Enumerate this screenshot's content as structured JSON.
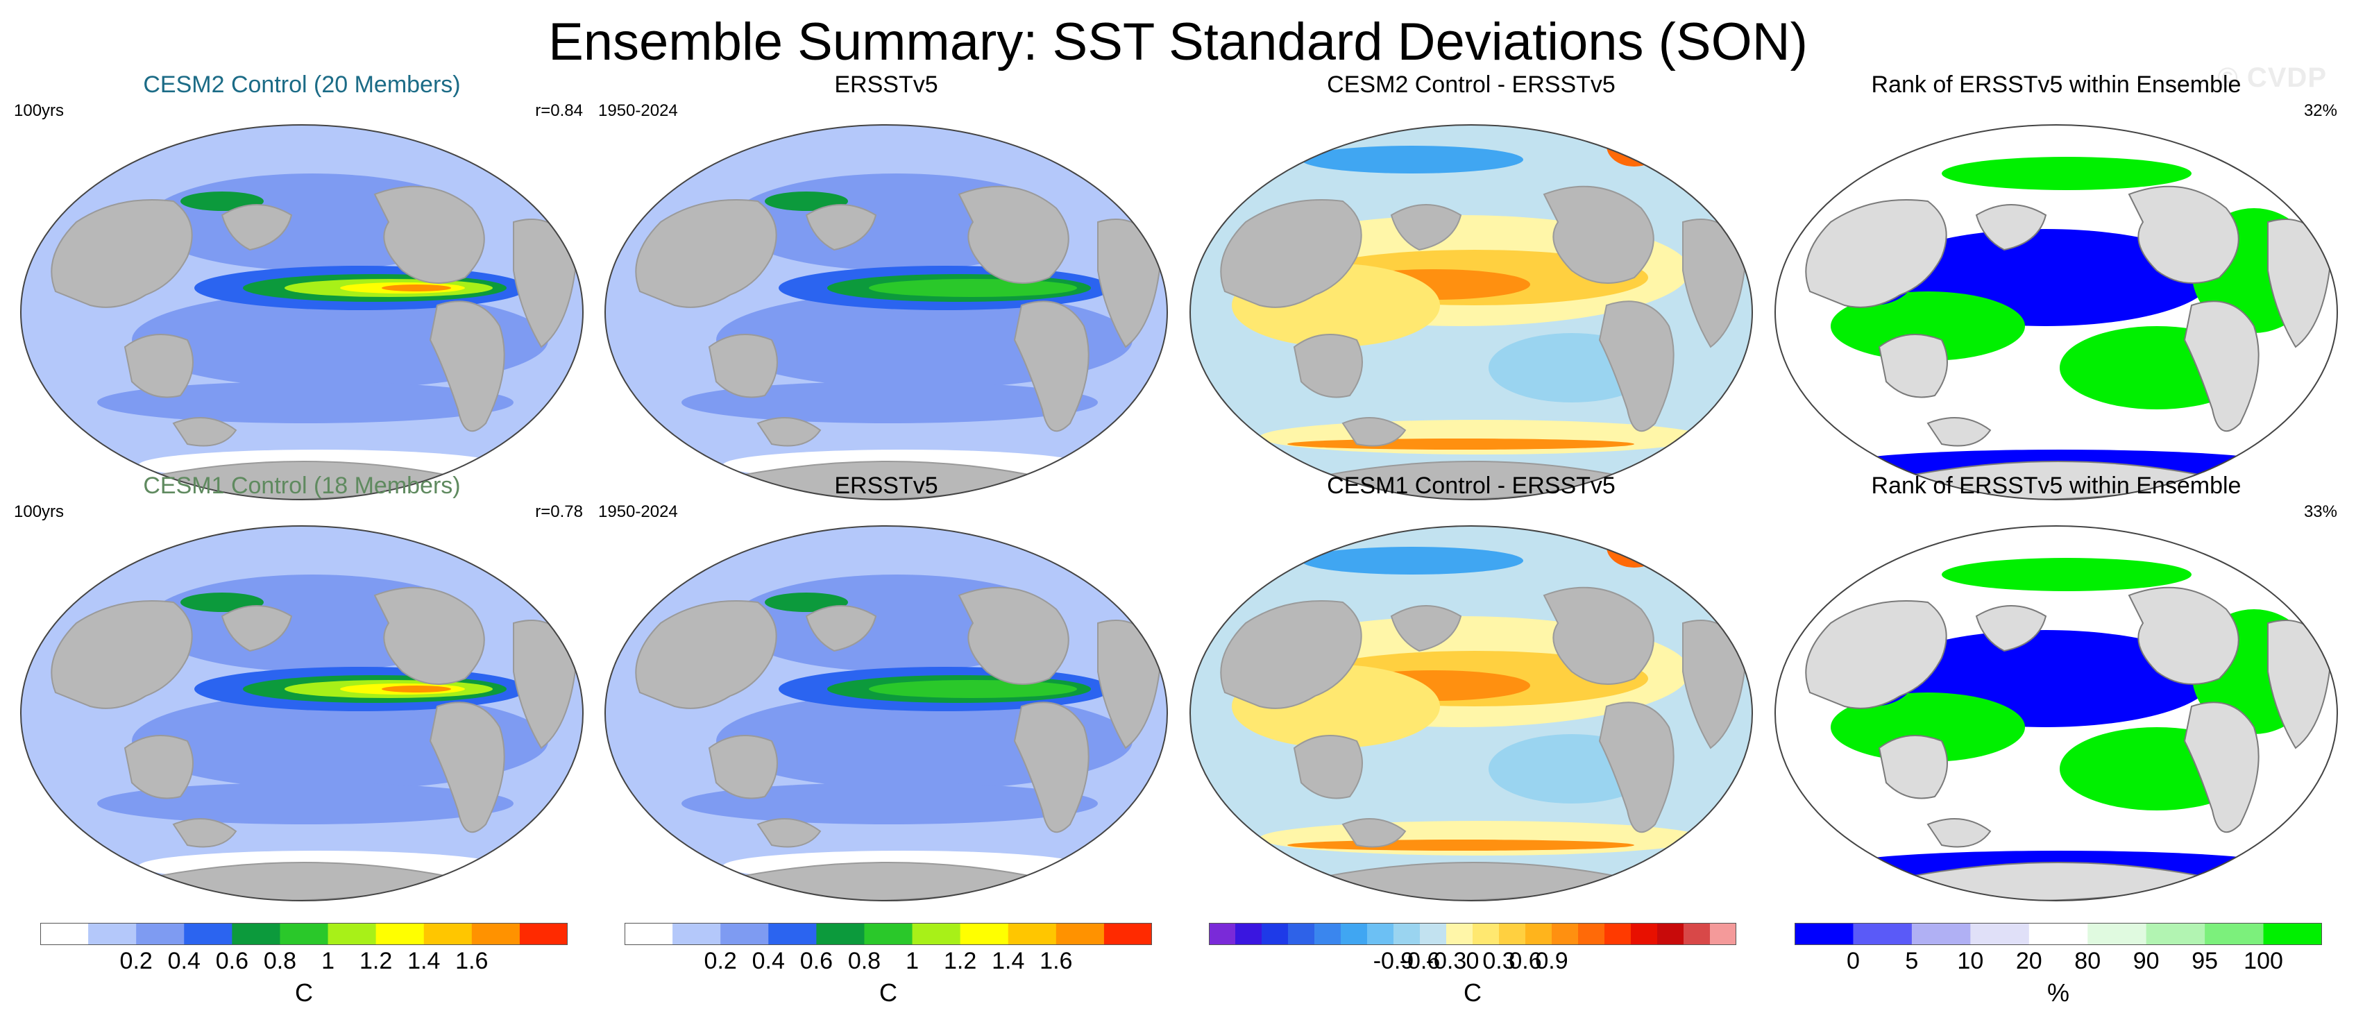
{
  "title": "Ensemble Summary: SST Standard Deviations (SON)",
  "watermark": "© CVDP",
  "panels": [
    {
      "title": "CESM2 Control (20 Members)",
      "title_color": "#1b6b86",
      "left": "100yrs",
      "right": "r=0.84",
      "kind": "std_model"
    },
    {
      "title": "ERSSTv5",
      "title_color": "#000000",
      "left": "1950-2024",
      "right": "",
      "kind": "std_obs"
    },
    {
      "title": "CESM2 Control - ERSSTv5",
      "title_color": "#000000",
      "left": "",
      "right": "",
      "kind": "diff"
    },
    {
      "title": "Rank of ERSSTv5 within Ensemble",
      "title_color": "#000000",
      "left": "",
      "right": "32%",
      "kind": "rank"
    },
    {
      "title": "CESM1 Control (18 Members)",
      "title_color": "#5f8a5f",
      "left": "100yrs",
      "right": "r=0.78",
      "kind": "std_model"
    },
    {
      "title": "ERSSTv5",
      "title_color": "#000000",
      "left": "1950-2024",
      "right": "",
      "kind": "std_obs"
    },
    {
      "title": "CESM1 Control - ERSSTv5",
      "title_color": "#000000",
      "left": "",
      "right": "",
      "kind": "diff"
    },
    {
      "title": "Rank of ERSSTv5 within Ensemble",
      "title_color": "#000000",
      "left": "",
      "right": "33%",
      "kind": "rank"
    }
  ],
  "colorbars": [
    {
      "unit": "C",
      "ticks": [
        "0.2",
        "0.4",
        "0.6",
        "0.8",
        "1",
        "1.2",
        "1.4",
        "1.6"
      ],
      "colors": [
        "#ffffff",
        "#b4c8fa",
        "#7e9bf2",
        "#2b64f0",
        "#0c9a3c",
        "#2ac82a",
        "#a8f018",
        "#ffff00",
        "#ffc600",
        "#ff9200",
        "#ff2a00"
      ]
    },
    {
      "unit": "C",
      "ticks": [
        "0.2",
        "0.4",
        "0.6",
        "0.8",
        "1",
        "1.2",
        "1.4",
        "1.6"
      ],
      "colors": [
        "#ffffff",
        "#b4c8fa",
        "#7e9bf2",
        "#2b64f0",
        "#0c9a3c",
        "#2ac82a",
        "#a8f018",
        "#ffff00",
        "#ffc600",
        "#ff9200",
        "#ff2a00"
      ]
    },
    {
      "unit": "C",
      "ticks": [
        "-0.9",
        "-0.6",
        "-0.3",
        "0",
        "0.3",
        "0.6",
        "0.9"
      ],
      "colors": [
        "#7a2ad8",
        "#3a16e0",
        "#1e3ae8",
        "#2e62e8",
        "#3a86ee",
        "#40a6f2",
        "#6cc0f4",
        "#9ad4f0",
        "#c2e2f0",
        "#fff6a8",
        "#ffe870",
        "#ffd040",
        "#ffb41c",
        "#ff9010",
        "#ff6a08",
        "#ff3a00",
        "#e81000",
        "#c80a0a",
        "#d84848",
        "#f49a9a"
      ]
    },
    {
      "unit": "%",
      "ticks": [
        "0",
        "5",
        "10",
        "20",
        "80",
        "90",
        "95",
        "100"
      ],
      "colors": [
        "#0000ff",
        "#5a5af8",
        "#b0b0f4",
        "#e0e0f8",
        "#ffffff",
        "#e0fae0",
        "#b2f4b2",
        "#7cf07c",
        "#00f000"
      ]
    }
  ]
}
